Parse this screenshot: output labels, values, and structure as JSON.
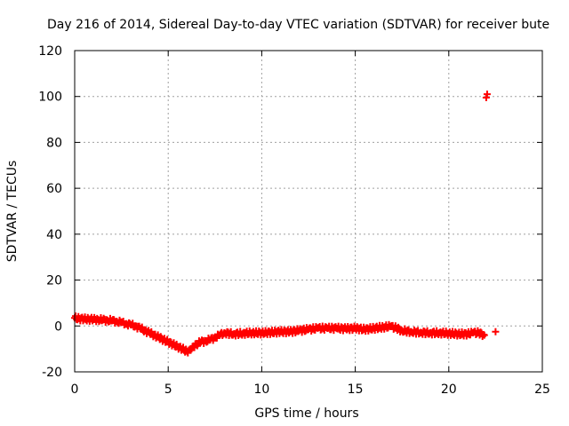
{
  "chart_data": {
    "type": "scatter",
    "title": "Day 216 of 2014, Sidereal Day-to-day VTEC variation (SDTVAR) for receiver bute",
    "xlabel": "GPS time / hours",
    "ylabel": "SDTVAR / TECUs",
    "xlim": [
      0,
      25
    ],
    "ylim": [
      -20,
      120
    ],
    "xticks": [
      0,
      5,
      10,
      15,
      20,
      25
    ],
    "yticks": [
      -20,
      0,
      20,
      40,
      60,
      80,
      100,
      120
    ],
    "xtick_labels": [
      "0",
      "5",
      "10",
      "15",
      "20",
      "25"
    ],
    "ytick_labels": [
      "-20",
      "0",
      "20",
      "40",
      "60",
      "80",
      "100",
      "120"
    ],
    "grid": true,
    "marker": "plus",
    "marker_color": "#ff0000",
    "series": [
      {
        "name": "SDTVAR",
        "x": [
          0.0,
          0.25,
          0.5,
          0.75,
          1.0,
          1.25,
          1.5,
          1.75,
          2.0,
          2.25,
          2.5,
          2.75,
          3.0,
          3.25,
          3.5,
          3.75,
          4.0,
          4.25,
          4.5,
          4.75,
          5.0,
          5.25,
          5.5,
          5.75,
          6.0,
          6.15,
          6.3,
          6.5,
          6.75,
          7.0,
          7.25,
          7.5,
          7.75,
          8.0,
          8.5,
          9.0,
          9.5,
          10.0,
          10.5,
          11.0,
          11.5,
          12.0,
          12.5,
          13.0,
          13.5,
          14.0,
          14.5,
          15.0,
          15.5,
          16.0,
          16.5,
          16.9,
          17.2,
          17.5,
          18.0,
          18.5,
          19.0,
          19.5,
          20.0,
          20.5,
          21.0,
          21.3,
          21.6,
          21.9,
          22.0,
          22.05,
          22.5
        ],
        "y": [
          3.5,
          3.2,
          3.0,
          3.0,
          2.8,
          2.8,
          2.6,
          2.5,
          2.3,
          2.0,
          1.5,
          1.0,
          0.5,
          0.0,
          -1.0,
          -2.0,
          -3.0,
          -4.0,
          -5.0,
          -6.0,
          -7.0,
          -8.0,
          -9.0,
          -10.0,
          -11.0,
          -10.5,
          -9.0,
          -8.0,
          -7.0,
          -6.5,
          -6.0,
          -5.0,
          -4.0,
          -3.0,
          -3.5,
          -3.2,
          -3.0,
          -3.0,
          -2.8,
          -2.5,
          -2.5,
          -2.0,
          -1.5,
          -1.0,
          -1.0,
          -1.0,
          -1.2,
          -1.0,
          -1.5,
          -1.0,
          -0.5,
          -0.2,
          -1.0,
          -2.0,
          -2.5,
          -2.8,
          -3.0,
          -3.0,
          -3.2,
          -3.5,
          -3.5,
          -3.0,
          -3.0,
          -4.0,
          99.5,
          101.0,
          -2.5
        ]
      }
    ]
  }
}
